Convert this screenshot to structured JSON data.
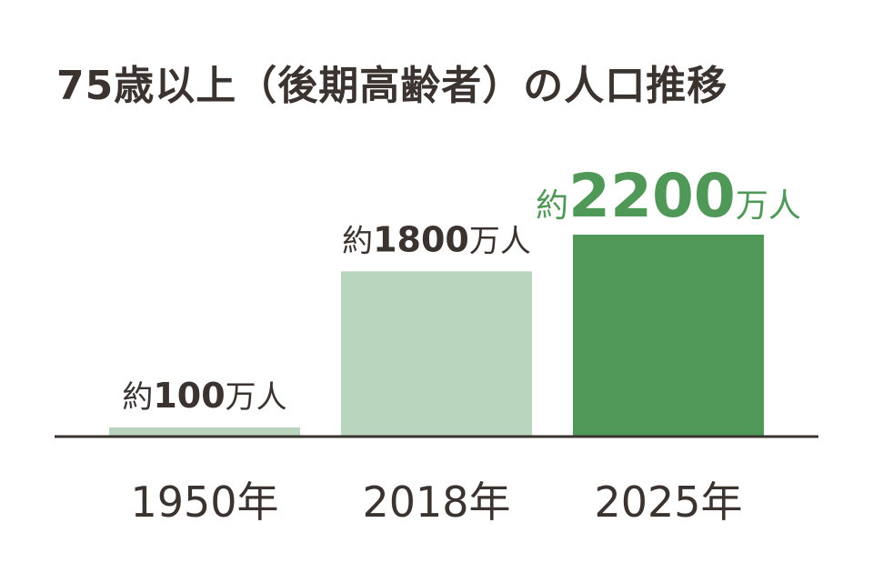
{
  "title": "75歳以上（後期高齢者）の人口推移",
  "colors": {
    "text": "#3a3330",
    "bar_light": "#b9d5be",
    "bar_highlight": "#4f9858",
    "axis": "#3a3330"
  },
  "chart_data": {
    "type": "bar",
    "title": "75歳以上（後期高齢者）の人口推移",
    "xlabel": "",
    "ylabel": "",
    "categories": [
      "1950年",
      "2018年",
      "2025年"
    ],
    "values": [
      100,
      1800,
      2200
    ],
    "unit": "万人",
    "ylim": [
      0,
      2200
    ],
    "grid": false,
    "data_labels": [
      {
        "prefix": "約",
        "number": "100",
        "suffix": "万人"
      },
      {
        "prefix": "約",
        "number": "1800",
        "suffix": "万人"
      },
      {
        "prefix": "約",
        "number": "2200",
        "suffix": "万人"
      }
    ],
    "highlight_index": 2
  }
}
